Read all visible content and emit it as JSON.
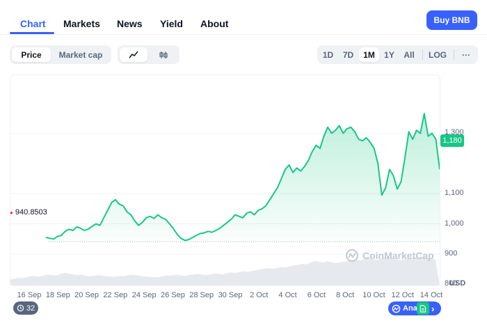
{
  "nav": {
    "tabs": [
      {
        "label": "Chart",
        "active": true
      },
      {
        "label": "Markets",
        "active": false
      },
      {
        "label": "News",
        "active": false
      },
      {
        "label": "Yield",
        "active": false
      },
      {
        "label": "About",
        "active": false
      }
    ],
    "buy_label": "Buy BNB"
  },
  "toolbar": {
    "metric": {
      "price": "Price",
      "market_cap": "Market cap",
      "selected": "Price"
    },
    "chart_style": {
      "line_icon": "line-chart-icon",
      "candle_icon": "candlestick-icon",
      "selected": "line"
    },
    "ranges": [
      "1D",
      "7D",
      "1M",
      "1Y",
      "All"
    ],
    "selected_range": "1M",
    "log_label": "LOG",
    "more_label": "···"
  },
  "colors": {
    "accent": "#3861fb",
    "up": "#16c784",
    "down": "#ea3943",
    "muted": "#58667e"
  },
  "chart_data": {
    "type": "area",
    "title": "",
    "xlabel": "",
    "ylabel": "USD",
    "currency_label": "USD",
    "ylim": [
      800,
      1400
    ],
    "yticks": [
      800,
      900,
      1000,
      1100,
      1300
    ],
    "ytick_labels": [
      "800",
      "900",
      "1,000",
      "1,100",
      "1,300"
    ],
    "xtick_labels": [
      "16 Sep",
      "18 Sep",
      "20 Sep",
      "22 Sep",
      "24 Sep",
      "26 Sep",
      "28 Sep",
      "30 Sep",
      "2 Oct",
      "4 Oct",
      "6 Oct",
      "8 Oct",
      "10 Oct",
      "12 Oct",
      "14 Oct"
    ],
    "current_price": 1180,
    "current_price_label": "1,180",
    "open_price_label": "940.8503",
    "open_price": 940.85,
    "series": [
      {
        "values": [
          955,
          952,
          950,
          958,
          962,
          975,
          982,
          978,
          990,
          985,
          978,
          983,
          992,
          1000,
          995,
          1020,
          1045,
          1070,
          1080,
          1065,
          1060,
          1040,
          1030,
          1010,
          995,
          1005,
          1020,
          1025,
          1018,
          1030,
          1020,
          1015,
          1000,
          985,
          965,
          952,
          945,
          948,
          955,
          962,
          968,
          970,
          975,
          972,
          978,
          985,
          995,
          1005,
          1015,
          1030,
          1025,
          1020,
          1035,
          1040,
          1030,
          1045,
          1050,
          1060,
          1080,
          1100,
          1120,
          1150,
          1180,
          1195,
          1170,
          1185,
          1175,
          1190,
          1210,
          1240,
          1260,
          1250,
          1290,
          1320,
          1300,
          1310,
          1325,
          1300,
          1315,
          1320,
          1305,
          1280,
          1275,
          1285,
          1270,
          1250,
          1200,
          1095,
          1120,
          1180,
          1160,
          1115,
          1140,
          1220,
          1305,
          1280,
          1310,
          1300,
          1365,
          1290,
          1300,
          1280,
          1180
        ]
      }
    ],
    "grid": true,
    "legend": "none"
  },
  "volume_data": {
    "values": [
      16,
      18,
      20,
      19,
      22,
      25,
      24,
      23,
      26,
      28,
      27,
      26,
      30,
      33,
      31,
      29,
      27,
      28,
      26,
      24,
      25,
      27,
      26,
      24,
      23,
      22,
      25,
      24,
      26,
      28,
      27,
      25,
      24,
      23,
      22,
      21,
      23,
      25,
      26,
      27,
      28,
      26,
      25,
      27,
      29,
      30,
      28,
      27,
      29,
      31,
      30,
      29,
      32,
      34,
      33,
      35,
      37,
      36,
      38,
      40,
      42,
      44,
      45,
      43,
      46,
      48,
      47,
      50,
      52,
      54,
      56,
      55,
      60,
      64,
      62,
      60,
      63,
      61,
      58,
      60,
      62,
      64,
      66,
      68,
      65,
      70,
      72,
      68,
      66,
      70,
      74,
      72,
      70,
      68,
      66,
      70,
      72,
      74,
      73,
      75,
      72,
      70,
      68
    ]
  },
  "watermark": "CoinMarketCap",
  "bottom": {
    "history_count": "32",
    "history_icon": "history-icon",
    "analysis_label": "Ana",
    "analysis_icon": "cmc-logo-icon",
    "doc_icon": "document-icon",
    "arrow": "›"
  }
}
